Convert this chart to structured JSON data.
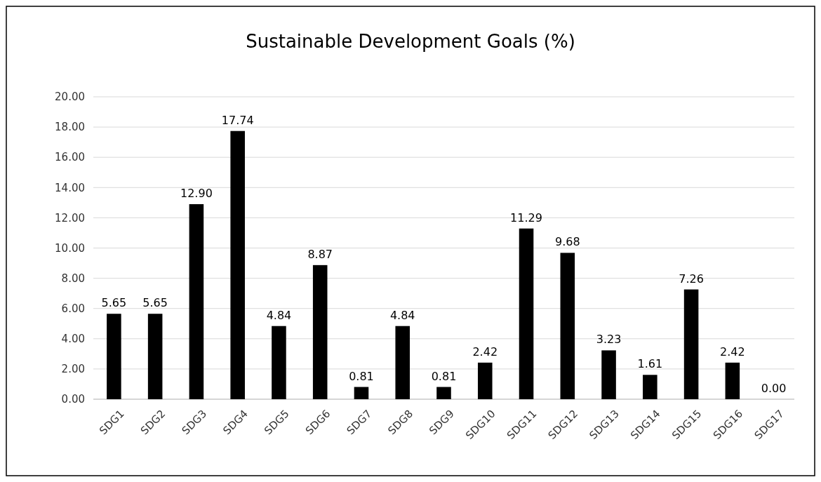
{
  "chart_data": {
    "type": "bar",
    "title": "Sustainable Development Goals (%)",
    "categories": [
      "SDG1",
      "SDG2",
      "SDG3",
      "SDG4",
      "SDG5",
      "SDG6",
      "SDG7",
      "SDG8",
      "SDG9",
      "SDG10",
      "SDG11",
      "SDG12",
      "SDG13",
      "SDG14",
      "SDG15",
      "SDG16",
      "SDG17"
    ],
    "values": [
      5.65,
      5.65,
      12.9,
      17.74,
      4.84,
      8.87,
      0.81,
      4.84,
      0.81,
      2.42,
      11.29,
      9.68,
      3.23,
      1.61,
      7.26,
      2.42,
      0
    ],
    "value_labels": [
      "5.65",
      "5.65",
      "12.90",
      "17.74",
      "4.84",
      "8.87",
      "0.81",
      "4.84",
      "0.81",
      "2.42",
      "11.29",
      "9.68",
      "3.23",
      "1.61",
      "7.26",
      "2.42",
      "0.00"
    ],
    "color": "#000000",
    "ylim": [
      0,
      20
    ],
    "yticks": [
      {
        "value": 0,
        "label": "0.00"
      },
      {
        "value": 2,
        "label": "2.00"
      },
      {
        "value": 4,
        "label": "4.00"
      },
      {
        "value": 6,
        "label": "6.00"
      },
      {
        "value": 8,
        "label": "8.00"
      },
      {
        "value": 10,
        "label": "10.00"
      },
      {
        "value": 12,
        "label": "12.00"
      },
      {
        "value": 14,
        "label": "14.00"
      },
      {
        "value": 16,
        "label": "16.00"
      },
      {
        "value": 18,
        "label": "18.00"
      },
      {
        "value": 20,
        "label": "20.00"
      }
    ],
    "grid": "y"
  }
}
